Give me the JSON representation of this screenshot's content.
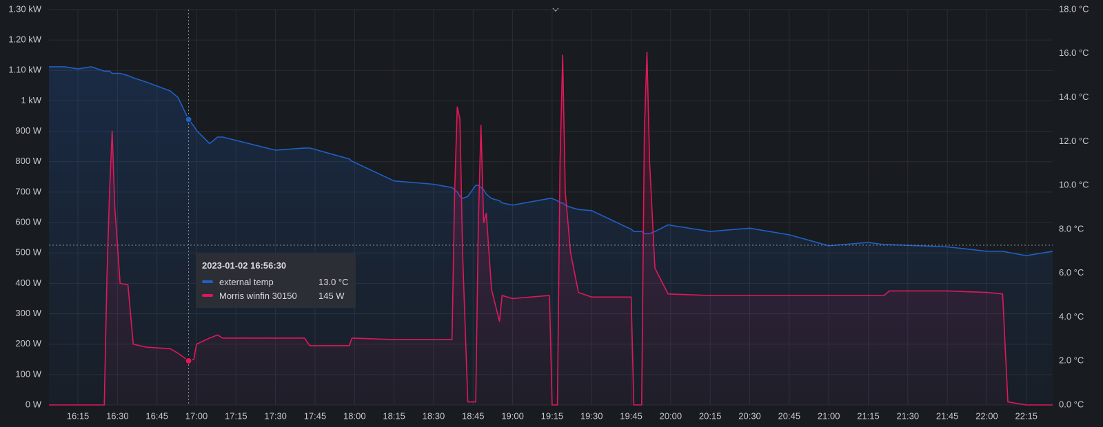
{
  "chart_data": {
    "type": "line",
    "x": [
      "16:04",
      "16:10",
      "16:15",
      "16:20",
      "16:25",
      "16:26",
      "16:27",
      "16:28",
      "16:29",
      "16:31",
      "16:34",
      "16:36",
      "16:41",
      "16:50",
      "16:53",
      "16:57",
      "16:59",
      "17:00",
      "17:05",
      "17:08",
      "17:10",
      "17:20",
      "17:30",
      "17:41",
      "17:43",
      "17:58",
      "17:59",
      "18:15",
      "18:30",
      "18:37",
      "18:38",
      "18:39",
      "18:40",
      "18:41",
      "18:43",
      "18:46",
      "18:47",
      "18:48",
      "18:49",
      "18:50",
      "18:52",
      "18:55",
      "18:56",
      "19:00",
      "19:14",
      "19:15",
      "19:17",
      "19:18",
      "19:19",
      "19:20",
      "19:22",
      "19:25",
      "19:30",
      "19:45",
      "19:46",
      "19:49",
      "19:50",
      "19:51",
      "19:52",
      "19:54",
      "19:59",
      "20:15",
      "20:30",
      "20:45",
      "21:00",
      "21:15",
      "21:21",
      "21:23",
      "21:45",
      "22:00",
      "22:06",
      "22:08",
      "22:15",
      "22:25"
    ],
    "series": [
      {
        "name": "external temp",
        "color": "#1f60c4",
        "axis": "y2",
        "values": [
          15.4,
          15.4,
          15.3,
          15.4,
          15.2,
          15.2,
          15.2,
          15.1,
          15.1,
          15.1,
          15.0,
          14.9,
          14.7,
          14.3,
          14.0,
          13.0,
          12.7,
          12.5,
          11.9,
          12.2,
          12.2,
          11.9,
          11.6,
          11.7,
          11.7,
          11.2,
          11.1,
          10.2,
          10.05,
          9.9,
          9.8,
          9.7,
          9.5,
          9.4,
          9.5,
          10.0,
          10.0,
          9.9,
          9.8,
          9.6,
          9.4,
          9.3,
          9.2,
          9.1,
          9.4,
          9.4,
          9.3,
          9.2,
          9.2,
          9.1,
          9.0,
          8.9,
          8.85,
          8.0,
          7.9,
          7.9,
          7.8,
          7.8,
          7.8,
          7.9,
          8.2,
          7.9,
          8.05,
          7.75,
          7.25,
          7.4,
          7.3,
          7.3,
          7.2,
          7.0,
          7.0,
          6.95,
          6.8,
          7.0
        ]
      },
      {
        "name": "Morris winfin 30150",
        "color": "#e0185a",
        "values": [
          0,
          0,
          0,
          0,
          0,
          420,
          700,
          900,
          650,
          400,
          395,
          200,
          190,
          185,
          170,
          145,
          150,
          200,
          220,
          230,
          220,
          220,
          220,
          220,
          195,
          195,
          220,
          215,
          215,
          215,
          700,
          980,
          940,
          500,
          10,
          10,
          600,
          920,
          600,
          630,
          380,
          275,
          360,
          350,
          360,
          0,
          0,
          800,
          1150,
          700,
          500,
          370,
          355,
          355,
          0,
          0,
          900,
          1160,
          800,
          450,
          365,
          360,
          360,
          360,
          360,
          360,
          360,
          375,
          375,
          370,
          365,
          10,
          0,
          0
        ]
      }
    ],
    "xlim": [
      "16:04",
      "22:25"
    ],
    "xticks": [
      "16:15",
      "16:30",
      "16:45",
      "17:00",
      "17:15",
      "17:30",
      "17:45",
      "18:00",
      "18:15",
      "18:30",
      "18:45",
      "19:00",
      "19:15",
      "19:30",
      "19:45",
      "20:00",
      "20:15",
      "20:30",
      "20:45",
      "21:00",
      "21:15",
      "21:30",
      "21:45",
      "22:00",
      "22:15"
    ],
    "ylim": [
      0,
      1300
    ],
    "yticks": [
      {
        "value": 0,
        "label": "0 W"
      },
      {
        "value": 100,
        "label": "100 W"
      },
      {
        "value": 200,
        "label": "200 W"
      },
      {
        "value": 300,
        "label": "300 W"
      },
      {
        "value": 400,
        "label": "400 W"
      },
      {
        "value": 500,
        "label": "500 W"
      },
      {
        "value": 600,
        "label": "600 W"
      },
      {
        "value": 700,
        "label": "700 W"
      },
      {
        "value": 800,
        "label": "800 W"
      },
      {
        "value": 900,
        "label": "900 W"
      },
      {
        "value": 1000,
        "label": "1 kW"
      },
      {
        "value": 1100,
        "label": "1.10 kW"
      },
      {
        "value": 1200,
        "label": "1.20 kW"
      },
      {
        "value": 1300,
        "label": "1.30 kW"
      }
    ],
    "y2lim": [
      0,
      18
    ],
    "y2ticks": [
      {
        "value": 0,
        "label": "0.0 °C"
      },
      {
        "value": 2,
        "label": "2.0 °C"
      },
      {
        "value": 4,
        "label": "4.0 °C"
      },
      {
        "value": 6,
        "label": "6.0 °C"
      },
      {
        "value": 8,
        "label": "8.0 °C"
      },
      {
        "value": 10,
        "label": "10.0 °C"
      },
      {
        "value": 12,
        "label": "12.0 °C"
      },
      {
        "value": 14,
        "label": "14.0 °C"
      },
      {
        "value": 16,
        "label": "16.0 °C"
      },
      {
        "value": 18,
        "label": "18.0 °C"
      }
    ],
    "grid": true,
    "tooltip": {
      "title": "2023-01-02 16:56:30",
      "point": 15,
      "values": [
        "13.0 °C",
        "145 W"
      ]
    }
  }
}
